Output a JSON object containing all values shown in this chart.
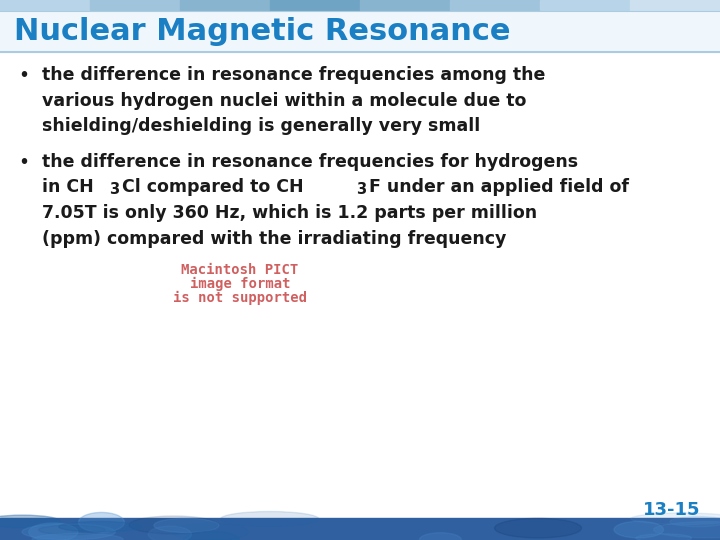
{
  "title": "Nuclear Magnetic Resonance",
  "title_color": "#1b7fc4",
  "title_fontsize": 22,
  "background_color": "#ffffff",
  "bullet1_lines": [
    "the difference in resonance frequencies among the",
    "various hydrogen nuclei within a molecule due to",
    "shielding/deshielding is generally very small"
  ],
  "bullet2_line1": "the difference in resonance frequencies for hydrogens",
  "bullet2_line3": "7.05T is only 360 Hz, which is 1.2 parts per million",
  "bullet2_line4": "(ppm) compared with the irradiating frequency",
  "pict_lines": [
    "Macintosh PICT",
    "image format",
    "is not supported"
  ],
  "pict_color": "#d06060",
  "text_color": "#1a1a1a",
  "slide_number": "13-15",
  "slide_number_color": "#1b7fc4",
  "body_fontsize": 12.5,
  "top_bar_colors": [
    "#b8d4e8",
    "#a0c4dc",
    "#88b4d0",
    "#70a4c4",
    "#88b4d0",
    "#a0c4dc",
    "#b8d4e8",
    "#cce0f0"
  ],
  "bottom_bar_color": "#3a6898"
}
